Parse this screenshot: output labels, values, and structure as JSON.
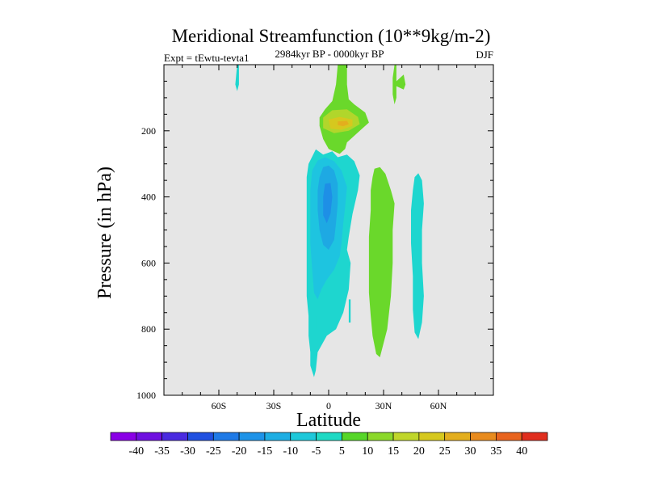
{
  "chart_data": {
    "type": "filled-contour",
    "title": "Meridional Streamfunction (10**9kg/m-2)",
    "subtitle": "2984kyr BP - 0000kyr BP",
    "experiment": "Expt = tEwtu-tevta1",
    "season": "DJF",
    "xlabel": "Latitude",
    "ylabel": "Pressure (in hPa)",
    "xlim": [
      -90,
      90
    ],
    "ylim": [
      1000,
      0
    ],
    "x_ticks": [
      {
        "value": -60,
        "label": "60S"
      },
      {
        "value": -30,
        "label": "30S"
      },
      {
        "value": 0,
        "label": "0"
      },
      {
        "value": 30,
        "label": "30N"
      },
      {
        "value": 60,
        "label": "60N"
      }
    ],
    "y_ticks": [
      {
        "value": 200,
        "label": "200"
      },
      {
        "value": 400,
        "label": "400"
      },
      {
        "value": 600,
        "label": "600"
      },
      {
        "value": 800,
        "label": "800"
      },
      {
        "value": 1000,
        "label": "1000"
      }
    ],
    "colors": {
      "background": "#e6e6e6",
      "lev_m25": "#1e8fe6",
      "lev_m20": "#1ea9e3",
      "lev_m15": "#1ec4e0",
      "lev_m10": "#1ed6cf",
      "lev_p5": "#6ad82b",
      "lev_p10": "#b1d62b",
      "lev_p15": "#d6c81e",
      "lev_p20": "#e3ae1e"
    },
    "contours": [
      {
        "name": "contour-equator-neg-10",
        "level": -10,
        "color_key": "lev_m10",
        "points": [
          [
            -11,
            300
          ],
          [
            -7,
            256
          ],
          [
            -3,
            272
          ],
          [
            2,
            262
          ],
          [
            5,
            280
          ],
          [
            10,
            272
          ],
          [
            14,
            292
          ],
          [
            17,
            335
          ],
          [
            16,
            380
          ],
          [
            13,
            452
          ],
          [
            11,
            520
          ],
          [
            10,
            560
          ],
          [
            12,
            600
          ],
          [
            11,
            680
          ],
          [
            8,
            750
          ],
          [
            4,
            800
          ],
          [
            -1,
            820
          ],
          [
            -6,
            870
          ],
          [
            -7,
            925
          ],
          [
            -8,
            945
          ],
          [
            -10,
            910
          ],
          [
            -10,
            870
          ],
          [
            -11,
            820
          ],
          [
            -11,
            760
          ],
          [
            -12,
            700
          ],
          [
            -12,
            640
          ],
          [
            -12,
            560
          ],
          [
            -12,
            480
          ],
          [
            -12,
            400
          ],
          [
            -12,
            340
          ]
        ]
      },
      {
        "name": "contour-equator-neg-15",
        "level": -15,
        "color_key": "lev_m15",
        "points": [
          [
            -6,
            290
          ],
          [
            -2,
            280
          ],
          [
            3,
            292
          ],
          [
            7,
            320
          ],
          [
            10,
            370
          ],
          [
            9,
            430
          ],
          [
            8,
            480
          ],
          [
            7,
            540
          ],
          [
            6,
            580
          ],
          [
            3,
            620
          ],
          [
            -1,
            650
          ],
          [
            -4,
            680
          ],
          [
            -6,
            710
          ],
          [
            -8,
            690
          ],
          [
            -9,
            620
          ],
          [
            -10,
            540
          ],
          [
            -10,
            460
          ],
          [
            -10,
            380
          ],
          [
            -9,
            320
          ]
        ]
      },
      {
        "name": "contour-equator-neg-20",
        "level": -20,
        "color_key": "lev_m20",
        "points": [
          [
            -3,
            310
          ],
          [
            0,
            305
          ],
          [
            3,
            320
          ],
          [
            5,
            360
          ],
          [
            5,
            420
          ],
          [
            4,
            480
          ],
          [
            3,
            530
          ],
          [
            0,
            560
          ],
          [
            -3,
            545
          ],
          [
            -5,
            500
          ],
          [
            -6,
            440
          ],
          [
            -6,
            380
          ],
          [
            -5,
            340
          ]
        ]
      },
      {
        "name": "contour-equator-neg-25",
        "level": -25,
        "color_key": "lev_m25",
        "points": [
          [
            -2,
            360
          ],
          [
            1,
            358
          ],
          [
            2,
            400
          ],
          [
            1,
            450
          ],
          [
            -1,
            480
          ],
          [
            -3,
            455
          ],
          [
            -3,
            400
          ]
        ]
      },
      {
        "name": "contour-equator-neg-10-bottom",
        "level": -10,
        "color_key": "lev_m10",
        "points": [
          [
            -7,
            760
          ],
          [
            -3,
            750
          ],
          [
            -2,
            800
          ],
          [
            -5,
            820
          ],
          [
            -7,
            800
          ]
        ]
      },
      {
        "name": "contour-equator-neg-10-sliver",
        "level": -10,
        "color_key": "lev_m10",
        "points": [
          [
            11,
            710
          ],
          [
            12,
            710
          ],
          [
            12,
            780
          ],
          [
            11,
            780
          ]
        ]
      },
      {
        "name": "contour-south-neg-10-strip",
        "level": -10,
        "color_key": "lev_m10",
        "points": [
          [
            -50,
            0
          ],
          [
            -49,
            0
          ],
          [
            -49,
            60
          ],
          [
            -50,
            80
          ],
          [
            -51,
            60
          ]
        ]
      },
      {
        "name": "contour-north-neg-10-cell",
        "level": -10,
        "color_key": "lev_m10",
        "points": [
          [
            47,
            340
          ],
          [
            49,
            328
          ],
          [
            51,
            350
          ],
          [
            52,
            420
          ],
          [
            51,
            500
          ],
          [
            51,
            600
          ],
          [
            52,
            700
          ],
          [
            51,
            780
          ],
          [
            49,
            830
          ],
          [
            47,
            810
          ],
          [
            46,
            740
          ],
          [
            46,
            640
          ],
          [
            45,
            540
          ],
          [
            45,
            440
          ],
          [
            46,
            380
          ]
        ]
      },
      {
        "name": "contour-upper-pos-5",
        "level": 5,
        "color_key": "lev_p5",
        "points": [
          [
            5,
            0
          ],
          [
            10,
            0
          ],
          [
            10,
            60
          ],
          [
            11,
            105
          ],
          [
            14,
            120
          ],
          [
            20,
            145
          ],
          [
            22,
            175
          ],
          [
            18,
            195
          ],
          [
            13,
            220
          ],
          [
            10,
            235
          ],
          [
            9,
            255
          ],
          [
            6,
            270
          ],
          [
            4,
            265
          ],
          [
            0,
            255
          ],
          [
            -3,
            225
          ],
          [
            -5,
            185
          ],
          [
            -5,
            160
          ],
          [
            -2,
            135
          ],
          [
            2,
            110
          ],
          [
            4,
            60
          ]
        ]
      },
      {
        "name": "contour-upper-pos-10",
        "level": 10,
        "color_key": "lev_p10",
        "points": [
          [
            -3,
            160
          ],
          [
            2,
            138
          ],
          [
            10,
            135
          ],
          [
            16,
            158
          ],
          [
            17,
            180
          ],
          [
            11,
            200
          ],
          [
            3,
            207
          ],
          [
            -3,
            192
          ]
        ]
      },
      {
        "name": "contour-upper-pos-15",
        "level": 15,
        "color_key": "lev_p15",
        "points": [
          [
            0,
            166
          ],
          [
            6,
            158
          ],
          [
            13,
            166
          ],
          [
            13,
            185
          ],
          [
            7,
            197
          ],
          [
            1,
            194
          ]
        ]
      },
      {
        "name": "contour-upper-pos-20",
        "level": 20,
        "color_key": "lev_p20",
        "points": [
          [
            5,
            172
          ],
          [
            10,
            170
          ],
          [
            11,
            180
          ],
          [
            8,
            186
          ],
          [
            5,
            183
          ]
        ]
      },
      {
        "name": "contour-upper-north-pos-5",
        "level": 5,
        "color_key": "lev_p5",
        "points": [
          [
            36,
            0
          ],
          [
            37,
            0
          ],
          [
            37,
            50
          ],
          [
            41,
            30
          ],
          [
            42,
            60
          ],
          [
            41,
            75
          ],
          [
            37,
            65
          ],
          [
            37,
            100
          ],
          [
            36,
            120
          ],
          [
            35,
            90
          ],
          [
            35,
            40
          ]
        ]
      },
      {
        "name": "contour-lower-pos-5",
        "level": 5,
        "color_key": "lev_p5",
        "points": [
          [
            25,
            315
          ],
          [
            28,
            310
          ],
          [
            31,
            330
          ],
          [
            34,
            380
          ],
          [
            36,
            420
          ],
          [
            35,
            500
          ],
          [
            35,
            600
          ],
          [
            34,
            700
          ],
          [
            32,
            800
          ],
          [
            28,
            885
          ],
          [
            26,
            875
          ],
          [
            24,
            820
          ],
          [
            23,
            760
          ],
          [
            22,
            690
          ],
          [
            22,
            600
          ],
          [
            22,
            520
          ],
          [
            23,
            440
          ],
          [
            23,
            380
          ],
          [
            24,
            340
          ]
        ]
      }
    ],
    "colorbar": {
      "labels": [
        "-40",
        "-35",
        "-30",
        "-25",
        "-20",
        "-15",
        "-10",
        "-5",
        "5",
        "10",
        "15",
        "20",
        "25",
        "30",
        "35",
        "40"
      ],
      "colors": [
        "#8a00e6",
        "#6f10e0",
        "#4a2be0",
        "#2050e0",
        "#1f7ae6",
        "#1e93e8",
        "#1eaee3",
        "#1ec8da",
        "#1ed9c4",
        "#56d629",
        "#8bd82b",
        "#c0d62b",
        "#d6c81e",
        "#e3ae1e",
        "#e88b1e",
        "#e8641e",
        "#e02e1e"
      ]
    }
  }
}
